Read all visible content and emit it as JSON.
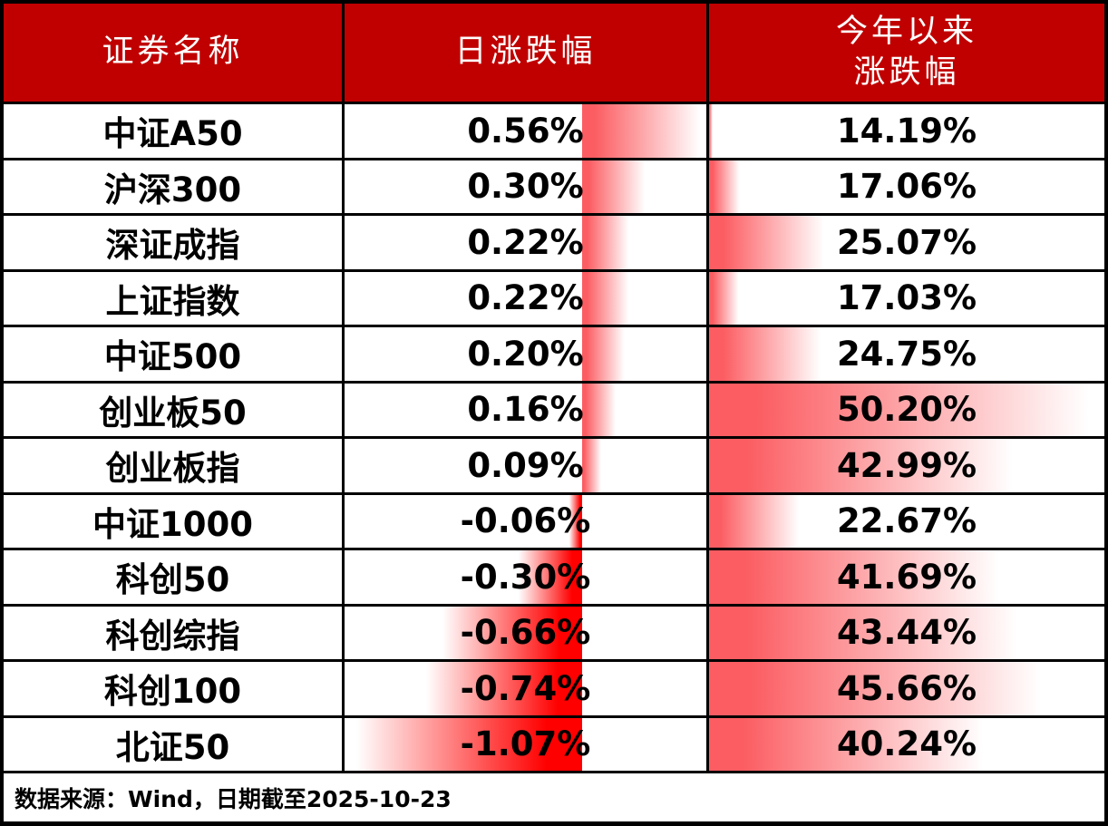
{
  "header": {
    "col1": "证券名称",
    "col2": "日涨跌幅",
    "col3_line1": "今年以来",
    "col3_line2": "涨跌幅"
  },
  "footer": {
    "source_text": "数据来源：Wind，日期截至2025-10-23"
  },
  "colors": {
    "header_bg": "#C00000",
    "header_text": "#FFFFFF",
    "border": "#000000",
    "bar_positive": "#FB5D62",
    "bar_negative": "#FF0000",
    "bar_fade_to": "#FFFFFF",
    "body_text": "#000000"
  },
  "chart_data": {
    "type": "table",
    "title": "",
    "columns": [
      "证券名称",
      "日涨跌幅",
      "今年以来涨跌幅"
    ],
    "rows": [
      {
        "name": "中证A50",
        "daily_label": "0.56%",
        "daily_value": 0.56,
        "ytd_label": "14.19%",
        "ytd_value": 14.19
      },
      {
        "name": "沪深300",
        "daily_label": "0.30%",
        "daily_value": 0.3,
        "ytd_label": "17.06%",
        "ytd_value": 17.06
      },
      {
        "name": "深证成指",
        "daily_label": "0.22%",
        "daily_value": 0.22,
        "ytd_label": "25.07%",
        "ytd_value": 25.07
      },
      {
        "name": "上证指数",
        "daily_label": "0.22%",
        "daily_value": 0.22,
        "ytd_label": "17.03%",
        "ytd_value": 17.03
      },
      {
        "name": "中证500",
        "daily_label": "0.20%",
        "daily_value": 0.2,
        "ytd_label": "24.75%",
        "ytd_value": 24.75
      },
      {
        "name": "创业板50",
        "daily_label": "0.16%",
        "daily_value": 0.16,
        "ytd_label": "50.20%",
        "ytd_value": 50.2
      },
      {
        "name": "创业板指",
        "daily_label": "0.09%",
        "daily_value": 0.09,
        "ytd_label": "42.99%",
        "ytd_value": 42.99
      },
      {
        "name": "中证1000",
        "daily_label": "-0.06%",
        "daily_value": -0.06,
        "ytd_label": "22.67%",
        "ytd_value": 22.67
      },
      {
        "name": "科创50",
        "daily_label": "-0.30%",
        "daily_value": -0.3,
        "ytd_label": "41.69%",
        "ytd_value": 41.69
      },
      {
        "name": "科创综指",
        "daily_label": "-0.66%",
        "daily_value": -0.66,
        "ytd_label": "43.44%",
        "ytd_value": 43.44
      },
      {
        "name": "科创100",
        "daily_label": "-0.74%",
        "daily_value": -0.74,
        "ytd_label": "45.66%",
        "ytd_value": 45.66
      },
      {
        "name": "北证50",
        "daily_label": "-1.07%",
        "daily_value": -1.07,
        "ytd_label": "40.24%",
        "ytd_value": 40.24
      }
    ],
    "daily_bar_scale": {
      "min": -1.07,
      "max": 0.56
    },
    "ytd_bar_scale": {
      "min": 14.19,
      "max": 50.2
    }
  }
}
